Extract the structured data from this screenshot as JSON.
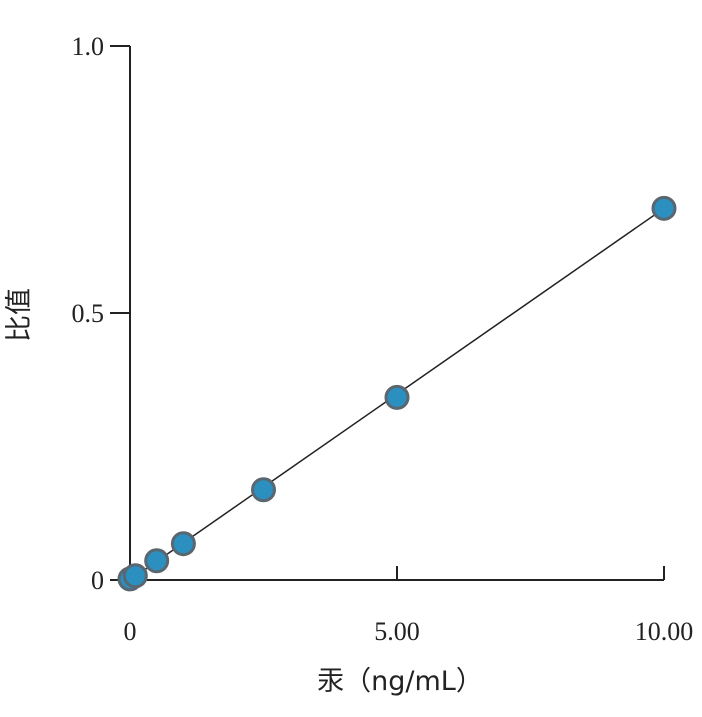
{
  "chart_data": {
    "type": "scatter",
    "title": "",
    "xlabel": "汞（ng/mL）",
    "ylabel": "比值",
    "xlim": [
      0,
      10
    ],
    "ylim": [
      0,
      1
    ],
    "x_ticks": [
      0,
      5,
      10
    ],
    "x_tick_labels": [
      "0",
      "5.00",
      "10.00"
    ],
    "y_ticks": [
      0,
      0.5,
      1
    ],
    "y_tick_labels": [
      "0",
      "0.5",
      "1.0"
    ],
    "grid": false,
    "legend": "none",
    "point_color": "#2b8fc0",
    "series": [
      {
        "x": [
          0,
          0.1,
          0.5,
          1.0,
          2.5,
          5.0,
          10.0
        ],
        "y": [
          0.002,
          0.008,
          0.036,
          0.068,
          0.169,
          0.342,
          0.696
        ]
      }
    ],
    "fit_line": {
      "x": [
        0,
        10
      ],
      "y": [
        0.0,
        0.696
      ]
    }
  }
}
